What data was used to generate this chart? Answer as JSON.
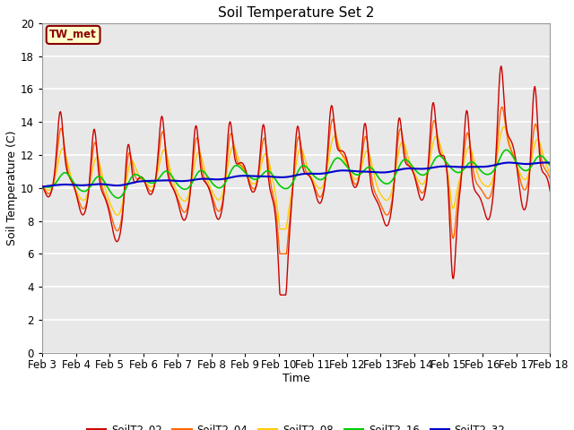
{
  "title": "Soil Temperature Set 2",
  "xlabel": "Time",
  "ylabel": "Soil Temperature (C)",
  "ylim": [
    0,
    20
  ],
  "xlim": [
    0,
    360
  ],
  "plot_bg": "#e8e8e8",
  "fig_bg": "#ffffff",
  "annotation_text": "TW_met",
  "annotation_bg": "#ffffcc",
  "annotation_border": "#8B0000",
  "series_colors": {
    "SoilT2_02": "#cc0000",
    "SoilT2_04": "#ff6600",
    "SoilT2_08": "#ffcc00",
    "SoilT2_16": "#00cc00",
    "SoilT2_32": "#0000cc"
  },
  "xtick_labels": [
    "Feb 3",
    "Feb 4",
    "Feb 5",
    "Feb 6",
    "Feb 7",
    "Feb 8",
    "Feb 9",
    "Feb 10",
    "Feb 11",
    "Feb 12",
    "Feb 13",
    "Feb 14",
    "Feb 15",
    "Feb 16",
    "Feb 17",
    "Feb 18"
  ],
  "xtick_positions": [
    0,
    24,
    48,
    72,
    96,
    120,
    144,
    168,
    192,
    216,
    240,
    264,
    288,
    312,
    336,
    360
  ],
  "ytick_positions": [
    0,
    2,
    4,
    6,
    8,
    10,
    12,
    14,
    16,
    18,
    20
  ]
}
